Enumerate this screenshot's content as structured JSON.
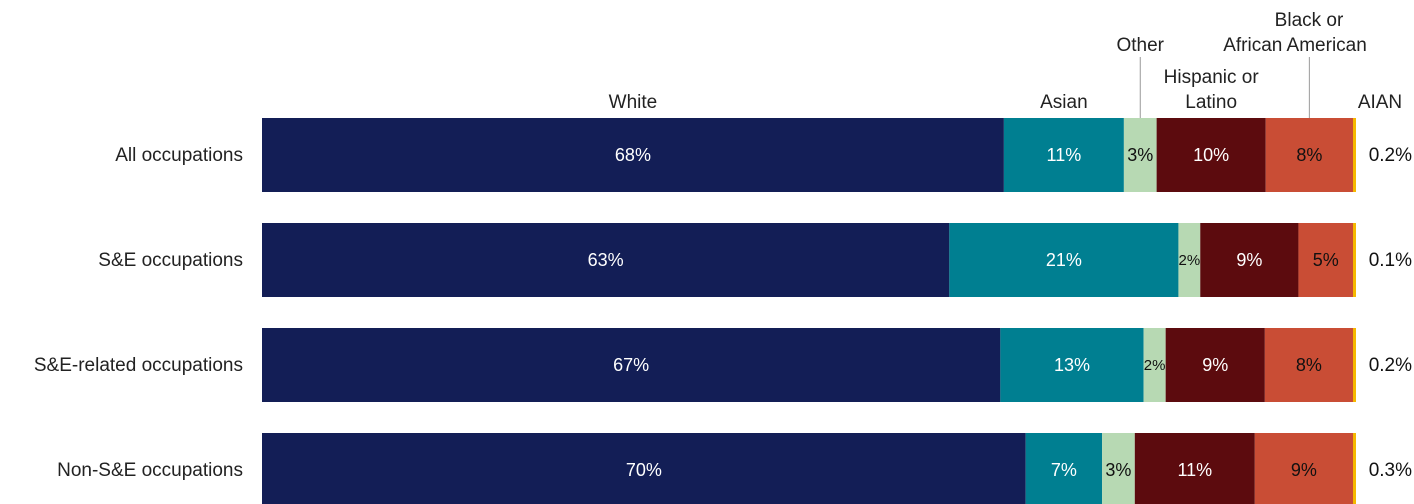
{
  "chart_data": {
    "type": "bar",
    "orientation": "horizontal",
    "stacked": true,
    "normalized": true,
    "categories": [
      "All occupations",
      "S&E occupations",
      "S&E-related occupations",
      "Non-S&E occupations"
    ],
    "series": [
      {
        "name": "White",
        "color": "#131e56",
        "text_color": "#ffffff",
        "values": [
          68,
          63,
          67,
          70
        ],
        "labels": [
          "68%",
          "63%",
          "67%",
          "70%"
        ]
      },
      {
        "name": "Asian",
        "color": "#007f91",
        "text_color": "#ffffff",
        "values": [
          11,
          21,
          13,
          7
        ],
        "labels": [
          "11%",
          "21%",
          "13%",
          "7%"
        ]
      },
      {
        "name": "Other",
        "color": "#b7d9b3",
        "text_color": "#111111",
        "values": [
          3,
          2,
          2,
          3
        ],
        "labels": [
          "3%",
          "2%",
          "2%",
          "3%"
        ]
      },
      {
        "name": "Hispanic or Latino",
        "color": "#5c0b0e",
        "text_color": "#ffffff",
        "values": [
          10,
          9,
          9,
          11
        ],
        "labels": [
          "10%",
          "9%",
          "9%",
          "11%"
        ]
      },
      {
        "name": "Black or African American",
        "color": "#c94d35",
        "text_color": "#111111",
        "values": [
          8,
          5,
          8,
          9
        ],
        "labels": [
          "8%",
          "5%",
          "8%",
          "9%"
        ]
      },
      {
        "name": "AIAN",
        "color": "#f5b800",
        "text_color": "#111111",
        "values": [
          0.2,
          0.1,
          0.2,
          0.3
        ],
        "labels": [
          "0.2%",
          "0.1%",
          "0.2%",
          "0.3%"
        ]
      }
    ],
    "legend_labels": {
      "white": "White",
      "asian": "Asian",
      "other": "Other",
      "hispanic": [
        "Hispanic or",
        "Latino"
      ],
      "black": [
        "Black or",
        "African American"
      ],
      "aian": "AIAN"
    },
    "legend_placement": "top, labels above segments",
    "grid": false,
    "title": "",
    "xlabel": "",
    "ylabel": ""
  }
}
